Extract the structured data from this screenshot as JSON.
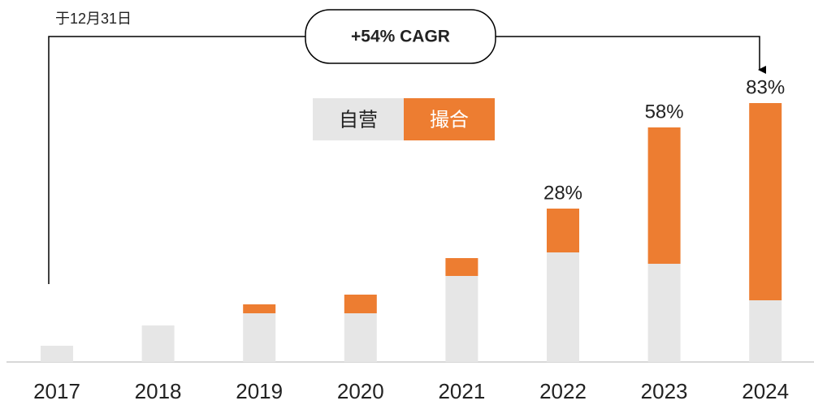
{
  "chart_data": {
    "type": "bar",
    "stacked": true,
    "subtitle": "于12月31日",
    "annotation": "+54% CAGR",
    "categories": [
      "2017",
      "2018",
      "2019",
      "2020",
      "2021",
      "2022",
      "2023",
      "2024"
    ],
    "series": [
      {
        "name": "自营",
        "color": "#e6e6e6",
        "values": [
          20,
          45,
          60,
          60,
          106,
          135,
          121,
          76
        ]
      },
      {
        "name": "撮合",
        "color": "#ed7d31",
        "values": [
          0,
          0,
          11,
          23,
          22,
          54,
          168,
          243
        ]
      }
    ],
    "shares": {
      "values": [
        null,
        null,
        null,
        null,
        null,
        28,
        58,
        83
      ],
      "value_labels": [
        null,
        null,
        null,
        null,
        null,
        "28%",
        "58%",
        "83%"
      ]
    },
    "ylim": [
      0,
      320
    ]
  }
}
